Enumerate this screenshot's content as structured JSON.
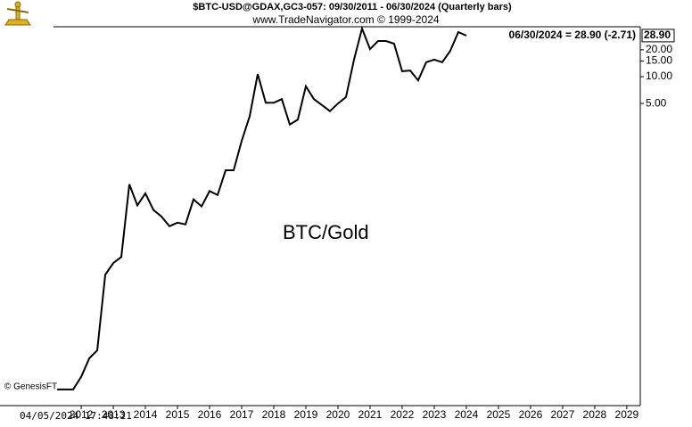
{
  "chart_data": {
    "type": "line",
    "title": "$BTC-USD@GDAX,GC3-057:  09/30/2011 - 06/30/2024  (Quarterly bars)",
    "subtitle": "www.TradeNavigator.com © 1999-2024",
    "annotation": "BTC/Gold",
    "credit": "© GenesisFT",
    "timestamp": "04/05/2024 17:48:21",
    "last_value_label": "06/30/2024 = 28.90 (-2.71)",
    "last_value_box": "28.90",
    "log_scale": true,
    "y_axis_side": "right",
    "xlim": [
      2009.97,
      2029.92
    ],
    "ylim": [
      0.00204,
      36.3
    ],
    "xticks": [
      {
        "value": 2012.5,
        "label": "2012"
      },
      {
        "value": 2013.5,
        "label": "2013"
      },
      {
        "value": 2014.5,
        "label": "2014"
      },
      {
        "value": 2015.5,
        "label": "2015"
      },
      {
        "value": 2016.5,
        "label": "2016"
      },
      {
        "value": 2017.5,
        "label": "2017"
      },
      {
        "value": 2018.5,
        "label": "2018"
      },
      {
        "value": 2019.5,
        "label": "2019"
      },
      {
        "value": 2020.5,
        "label": "2020"
      },
      {
        "value": 2021.5,
        "label": "2021"
      },
      {
        "value": 2022.5,
        "label": "2022"
      },
      {
        "value": 2023.5,
        "label": "2023"
      },
      {
        "value": 2024.5,
        "label": "2024"
      },
      {
        "value": 2025.5,
        "label": "2025"
      },
      {
        "value": 2026.5,
        "label": "2026"
      },
      {
        "value": 2027.5,
        "label": "2027"
      },
      {
        "value": 2028.5,
        "label": "2028"
      },
      {
        "value": 2029.5,
        "label": "2029"
      }
    ],
    "yticks": [
      {
        "value": 20,
        "label": "20.00"
      },
      {
        "value": 15,
        "label": "15.00"
      },
      {
        "value": 10,
        "label": "10.00"
      },
      {
        "value": 5,
        "label": "5.00"
      }
    ],
    "x": [
      2011.75,
      2012,
      2012.25,
      2012.5,
      2012.75,
      2013,
      2013.25,
      2013.5,
      2013.75,
      2014,
      2014.25,
      2014.5,
      2014.75,
      2015,
      2015.25,
      2015.5,
      2015.75,
      2016,
      2016.25,
      2016.5,
      2016.75,
      2017,
      2017.25,
      2017.5,
      2017.75,
      2018,
      2018.25,
      2018.5,
      2018.75,
      2019,
      2019.25,
      2019.5,
      2019.75,
      2020,
      2020.25,
      2020.5,
      2020.75,
      2021,
      2021.25,
      2021.5,
      2021.75,
      2022,
      2022.25,
      2022.5,
      2022.75,
      2023,
      2023.25,
      2023.5,
      2023.75,
      2024,
      2024.25,
      2024.5
    ],
    "series": [
      {
        "color": "#000000",
        "values": [
          0.0031,
          0.0031,
          0.0031,
          0.0043,
          0.0069,
          0.0085,
          0.06,
          0.081,
          0.095,
          0.62,
          0.36,
          0.49,
          0.32,
          0.27,
          0.21,
          0.23,
          0.22,
          0.42,
          0.35,
          0.52,
          0.47,
          0.89,
          0.89,
          1.9,
          3.6,
          10.7,
          5.1,
          5.1,
          5.6,
          2.9,
          3.3,
          7.8,
          5.6,
          4.8,
          4.1,
          5.0,
          5.9,
          15.5,
          34.7,
          20.4,
          25.1,
          25.1,
          23.4,
          11.5,
          11.7,
          9.1,
          14.5,
          15.5,
          14.5,
          19.5,
          31.61,
          28.9
        ]
      }
    ]
  }
}
